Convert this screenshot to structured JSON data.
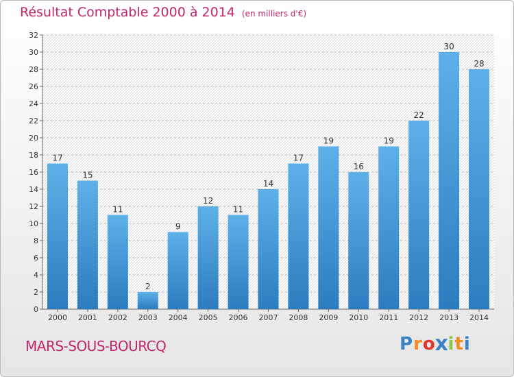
{
  "chart_data": {
    "type": "bar",
    "title": "Résultat Comptable 2000 à 2014",
    "subtitle": "(en milliers d'€)",
    "categories": [
      "2000",
      "2001",
      "2002",
      "2003",
      "2004",
      "2005",
      "2006",
      "2007",
      "2008",
      "2009",
      "2010",
      "2011",
      "2012",
      "2013",
      "2014"
    ],
    "values": [
      17,
      15,
      11,
      2,
      9,
      12,
      11,
      14,
      17,
      19,
      16,
      19,
      22,
      30,
      28
    ],
    "ylim": [
      0,
      32
    ],
    "yticks": [
      0,
      2,
      4,
      6,
      8,
      10,
      12,
      14,
      16,
      18,
      20,
      22,
      24,
      26,
      28,
      30,
      32
    ],
    "grid": true,
    "xlabel": "",
    "ylabel": ""
  },
  "footer": {
    "city": "MARS-SOUS-BOURCQ",
    "brand_letters": [
      "P",
      "r",
      "o",
      "x",
      "i",
      "t",
      "i"
    ]
  },
  "colors": {
    "accent": "#c0266b",
    "bar_top": "#5eb0e8",
    "bar_bottom": "#2c7cbf",
    "brand": [
      "#3b82c4",
      "#f28c1e",
      "#e3342f",
      "#3b82c4",
      "#8bc34a",
      "#f28c1e",
      "#3b82c4"
    ]
  }
}
